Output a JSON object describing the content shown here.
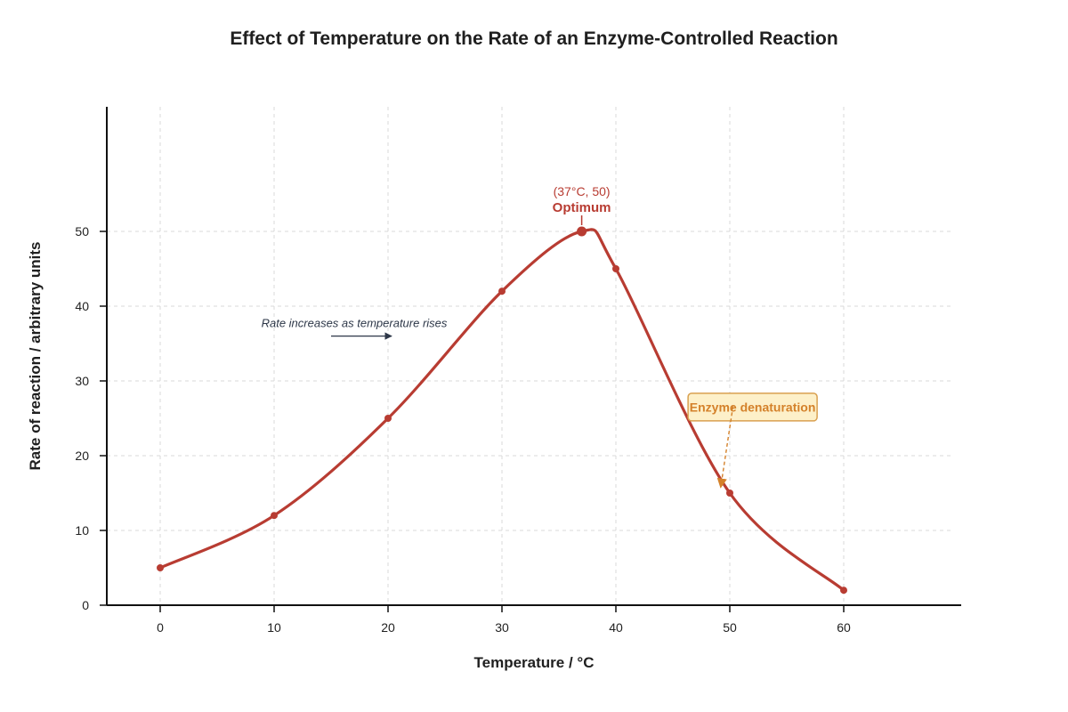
{
  "chart_data": {
    "type": "line",
    "title": "Effect of Temperature on the Rate of an Enzyme-Controlled Reaction",
    "xlabel": "Temperature / °C",
    "ylabel": "Rate of reaction / arbitrary units",
    "xlim": [
      -5,
      70
    ],
    "ylim": [
      0,
      66
    ],
    "x_ticks": [
      0,
      10,
      20,
      30,
      40,
      50,
      60
    ],
    "y_ticks": [
      0,
      10,
      20,
      30,
      40,
      50
    ],
    "grid": true,
    "series": [
      {
        "x": [
          0,
          10,
          20,
          30,
          37,
          40,
          50,
          60
        ],
        "y": [
          5,
          12,
          25,
          42,
          50,
          45,
          15,
          2
        ]
      }
    ],
    "annotations": {
      "optimum": {
        "x": 37,
        "y": 50,
        "coord_text": "(37°C, 50)",
        "label": "Optimum"
      },
      "trend": {
        "text": "Rate increases as temperature rises",
        "x_from": 15,
        "x_to": 20,
        "y": 36
      },
      "denaturation": {
        "text": "Enzyme denaturation",
        "box_x": 52,
        "box_y": 26.5,
        "arrow_to_x": 49.2,
        "arrow_to_y": 16
      }
    },
    "colors": {
      "line": "#b83c32",
      "trend_arrow": "#2d3748",
      "denaturation_text": "#d4812a",
      "denaturation_fill": "#fdf0c9",
      "denaturation_border": "#d9a050"
    }
  }
}
